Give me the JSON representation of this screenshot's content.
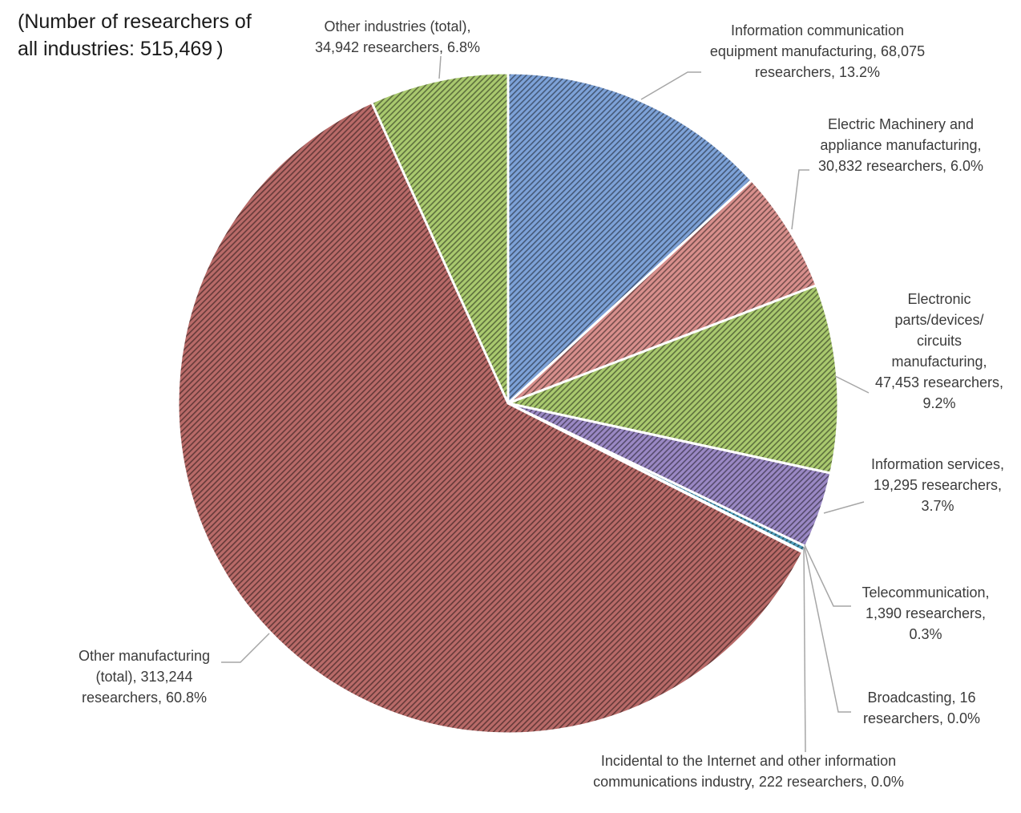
{
  "note": {
    "line1": "(Number of researchers of",
    "line2": "all industries: 515,469 )"
  },
  "chart_data": {
    "type": "pie",
    "title": "",
    "total_label": "(Number of researchers of all industries: 515,469)",
    "start_angle_deg": 0,
    "direction": "clockwise",
    "slices": [
      {
        "key": "info_equipment",
        "category": "Information communication equipment manufacturing",
        "value": 68075,
        "percent": 13.2,
        "color": "#7da2d8",
        "label_lines": [
          "Information communication",
          "equipment manufacturing, 68,075",
          "researchers, 13.2%"
        ]
      },
      {
        "key": "electric_machinery",
        "category": "Electric Machinery and appliance manufacturing",
        "value": 30832,
        "percent": 6.0,
        "color": "#d88f8c",
        "label_lines": [
          "Electric Machinery and",
          "appliance manufacturing,",
          "30,832 researchers, 6.0%"
        ]
      },
      {
        "key": "electronic_parts",
        "category": "Electronic parts/devices/circuits manufacturing",
        "value": 47453,
        "percent": 9.2,
        "color": "#a9c96e",
        "label_lines": [
          "Electronic",
          "parts/devices/",
          "circuits",
          "manufacturing,",
          "47,453 researchers,",
          "9.2%"
        ]
      },
      {
        "key": "info_services",
        "category": "Information services",
        "value": 19295,
        "percent": 3.7,
        "color": "#9a88c4",
        "label_lines": [
          "Information services,",
          "19,295 researchers,",
          "3.7%"
        ]
      },
      {
        "key": "telecom",
        "category": "Telecommunication",
        "value": 1390,
        "percent": 0.3,
        "color": "#4f9fbd",
        "label_lines": [
          "Telecommunication,",
          "1,390 researchers,",
          "0.3%"
        ]
      },
      {
        "key": "broadcasting",
        "category": "Broadcasting",
        "value": 16,
        "percent": 0.0,
        "color": "#e8a45a",
        "label_lines": [
          "Broadcasting, 16",
          "researchers, 0.0%"
        ]
      },
      {
        "key": "internet_incidental",
        "category": "Incidental to the Internet and other information communications industry",
        "value": 222,
        "percent": 0.0,
        "color": "#7890b8",
        "label_lines": [
          "Incidental to the Internet and other information",
          "communications industry, 222 researchers, 0.0%"
        ]
      },
      {
        "key": "other_manufacturing",
        "category": "Other manufacturing (total)",
        "value": 313244,
        "percent": 60.8,
        "color": "#b86a68",
        "label_lines": [
          "Other manufacturing",
          "(total), 313,244",
          "researchers, 60.8%"
        ]
      },
      {
        "key": "other_industries",
        "category": "Other industries (total)",
        "value": 34942,
        "percent": 6.8,
        "color": "#a9c96e",
        "label_lines": [
          "Other industries (total),",
          "34,942 researchers, 6.8%"
        ]
      }
    ]
  }
}
